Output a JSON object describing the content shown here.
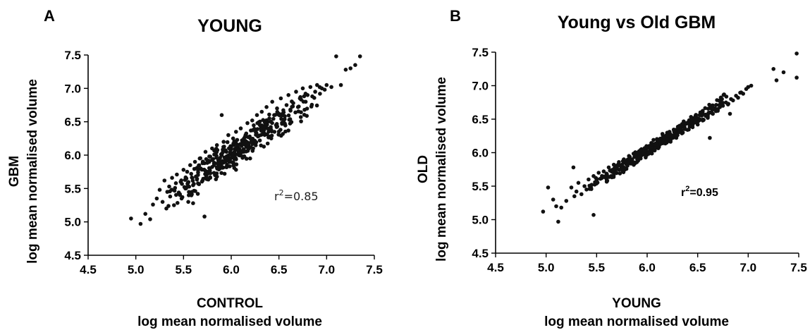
{
  "chart_data": [
    {
      "panel": "A",
      "type": "scatter",
      "title": "YOUNG",
      "xlabel": "CONTROL",
      "xlabel2": "log mean normalised volume",
      "ylabel": "GBM",
      "ylabel2": "log mean normalised volume",
      "xlim": [
        4.5,
        7.5
      ],
      "ylim": [
        4.5,
        7.5
      ],
      "xticks": [
        "4.5",
        "5.0",
        "5.5",
        "6.0",
        "6.5",
        "7.0",
        "7.5"
      ],
      "yticks": [
        "4.5",
        "5.0",
        "5.5",
        "6.0",
        "6.5",
        "7.0",
        "7.5"
      ],
      "annotation_prefix": "r",
      "annotation_sup": "2",
      "annotation_value": "=0.85",
      "grid": false,
      "slope": 0.93,
      "spread": 0.17,
      "x": [
        4.95,
        5.05,
        5.1,
        5.15,
        5.18,
        5.22,
        5.25,
        5.28,
        5.3,
        5.32,
        5.33,
        5.35,
        5.36,
        5.38,
        5.4,
        5.42,
        5.43,
        5.45,
        5.47,
        5.48,
        5.5,
        5.52,
        5.53,
        5.55,
        5.57,
        5.58,
        5.6,
        5.62,
        5.63,
        5.65,
        5.67,
        5.68,
        5.7,
        5.72,
        5.73,
        5.75,
        5.77,
        5.78,
        5.8,
        5.82,
        5.83,
        5.85,
        5.87,
        5.88,
        5.9,
        5.92,
        5.93,
        5.95,
        5.97,
        5.98,
        6.0,
        6.02,
        6.03,
        6.05,
        6.07,
        6.08,
        6.1,
        6.12,
        6.13,
        6.15,
        6.17,
        6.18,
        6.2,
        6.22,
        6.23,
        6.25,
        6.27,
        6.28,
        6.3,
        6.32,
        6.33,
        6.35,
        6.37,
        6.38,
        6.4,
        6.42,
        6.43,
        6.45,
        6.47,
        6.48,
        6.5,
        6.52,
        6.55,
        6.58,
        6.6,
        6.62,
        6.65,
        6.68,
        6.7,
        6.72,
        6.75,
        6.78,
        6.8,
        6.83,
        6.85,
        6.88,
        6.9,
        6.93,
        6.95,
        6.98,
        7.0,
        7.05,
        7.1,
        7.15,
        7.2,
        7.25,
        7.3,
        7.35,
        5.72,
        5.9,
        6.05,
        6.3,
        5.6
      ],
      "y": [
        5.05,
        4.97,
        5.12,
        5.04,
        5.26,
        5.35,
        5.48,
        5.3,
        5.62,
        5.2,
        5.45,
        5.53,
        5.38,
        5.66,
        5.25,
        5.58,
        5.71,
        5.44,
        5.6,
        5.35,
        5.78,
        5.5,
        5.65,
        5.3,
        5.85,
        5.72,
        5.55,
        5.9,
        5.68,
        5.42,
        5.95,
        5.8,
        5.62,
        5.88,
        6.05,
        5.75,
        5.98,
        5.66,
        6.1,
        5.85,
        5.7,
        6.15,
        5.92,
        5.8,
        6.0,
        6.2,
        5.9,
        6.05,
        6.3,
        5.95,
        6.1,
        6.25,
        5.98,
        6.35,
        6.12,
        6.0,
        6.4,
        6.2,
        6.05,
        6.3,
        6.48,
        6.15,
        6.25,
        6.52,
        6.1,
        6.38,
        6.6,
        6.28,
        6.45,
        6.65,
        6.32,
        6.5,
        6.72,
        6.4,
        6.55,
        6.25,
        6.8,
        6.6,
        6.45,
        6.7,
        6.62,
        6.85,
        6.5,
        6.75,
        6.9,
        6.68,
        6.78,
        6.95,
        6.72,
        6.85,
        7.0,
        6.8,
        6.9,
        7.02,
        6.88,
        6.95,
        7.05,
        6.92,
        7.0,
        6.98,
        7.05,
        7.02,
        7.48,
        7.05,
        7.28,
        7.3,
        7.35,
        7.48,
        5.08,
        6.6,
        5.78,
        6.22,
        5.28
      ]
    },
    {
      "panel": "B",
      "type": "scatter",
      "title": "Young vs Old GBM",
      "xlabel": "YOUNG",
      "xlabel2": "log mean normalised volume",
      "ylabel": "OLD",
      "ylabel2": "log mean normalised volume",
      "xlim": [
        4.5,
        7.5
      ],
      "ylim": [
        4.5,
        7.5
      ],
      "xticks": [
        "4.5",
        "5.0",
        "5.5",
        "6.0",
        "6.5",
        "7.0",
        "7.5"
      ],
      "yticks": [
        "4.5",
        "5.0",
        "5.5",
        "6.0",
        "6.5",
        "7.0",
        "7.5"
      ],
      "annotation_prefix": "r",
      "annotation_sup": "2",
      "annotation_value": "=0.95",
      "grid": false,
      "slope": 0.97,
      "spread": 0.07,
      "x": [
        4.97,
        5.02,
        5.07,
        5.1,
        5.12,
        5.2,
        5.25,
        5.28,
        5.3,
        5.32,
        5.35,
        5.38,
        5.4,
        5.42,
        5.45,
        5.47,
        5.5,
        5.52,
        5.55,
        5.57,
        5.6,
        5.62,
        5.65,
        5.67,
        5.7,
        5.72,
        5.75,
        5.77,
        5.8,
        5.82,
        5.85,
        5.87,
        5.9,
        5.92,
        5.95,
        5.97,
        6.0,
        6.02,
        6.05,
        6.07,
        6.1,
        6.12,
        6.15,
        6.17,
        6.2,
        6.22,
        6.25,
        6.27,
        6.3,
        6.32,
        6.35,
        6.37,
        6.4,
        6.42,
        6.45,
        6.47,
        6.5,
        6.52,
        6.55,
        6.58,
        6.6,
        6.62,
        6.65,
        6.68,
        6.7,
        6.72,
        6.75,
        6.78,
        6.8,
        6.83,
        6.85,
        6.88,
        6.9,
        6.93,
        6.95,
        6.98,
        7.0,
        7.03,
        7.25,
        7.28,
        7.35,
        7.48,
        7.48,
        5.47,
        5.27,
        6.62,
        6.82,
        5.15
      ],
      "y": [
        5.12,
        5.48,
        5.3,
        5.2,
        4.97,
        5.28,
        5.48,
        5.35,
        5.42,
        5.55,
        5.38,
        5.5,
        5.45,
        5.6,
        5.52,
        5.65,
        5.58,
        5.7,
        5.62,
        5.72,
        5.68,
        5.78,
        5.74,
        5.82,
        5.78,
        5.86,
        5.82,
        5.9,
        5.86,
        5.95,
        5.9,
        5.98,
        5.94,
        6.02,
        5.98,
        6.05,
        6.02,
        6.1,
        6.06,
        6.12,
        6.1,
        6.18,
        6.14,
        6.2,
        6.18,
        6.25,
        6.22,
        6.3,
        6.26,
        6.32,
        6.3,
        6.38,
        6.34,
        6.42,
        6.38,
        6.45,
        6.42,
        6.5,
        6.48,
        6.55,
        6.52,
        6.6,
        6.58,
        6.62,
        6.65,
        6.68,
        6.7,
        6.75,
        6.72,
        6.8,
        6.78,
        6.85,
        6.82,
        6.9,
        6.88,
        6.95,
        6.98,
        7.0,
        7.25,
        7.08,
        7.2,
        7.48,
        7.12,
        5.07,
        5.78,
        6.22,
        6.58,
        5.18
      ]
    }
  ]
}
